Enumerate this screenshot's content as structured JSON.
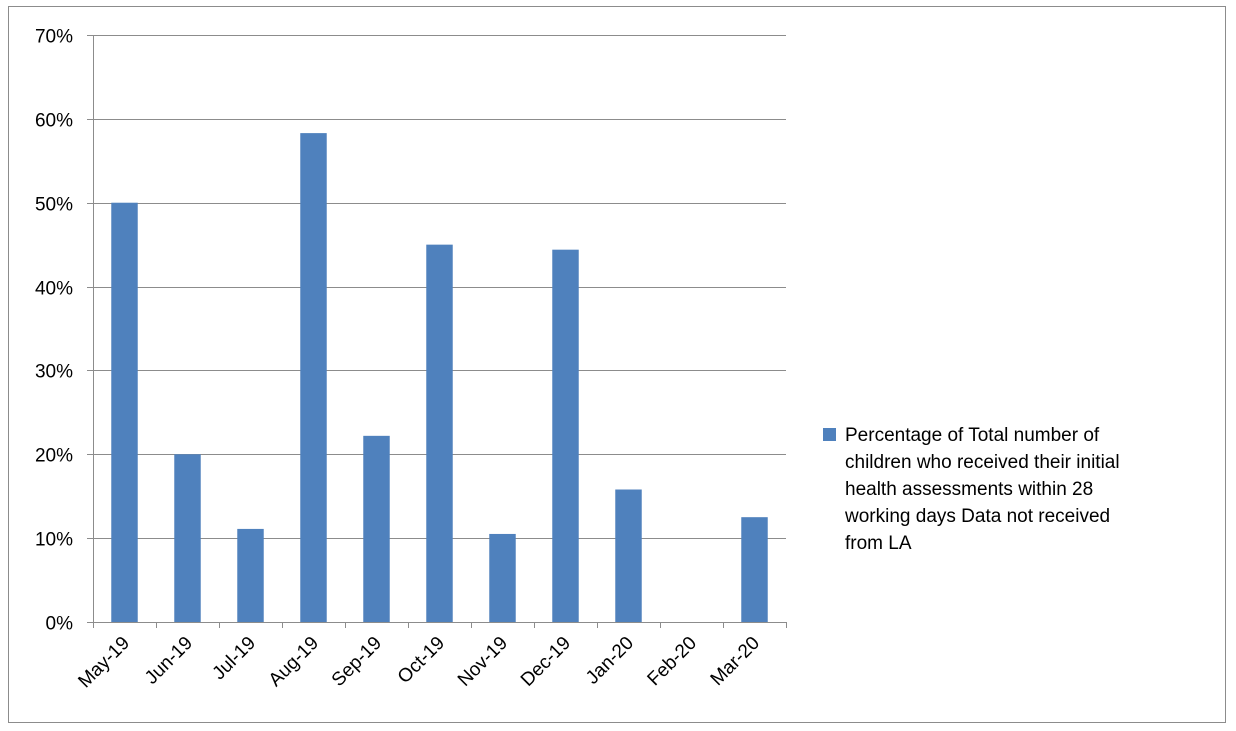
{
  "chart_data": {
    "type": "bar",
    "title": "",
    "xlabel": "",
    "ylabel": "",
    "categories": [
      "May-19",
      "Jun-19",
      "Jul-19",
      "Aug-19",
      "Sep-19",
      "Oct-19",
      "Nov-19",
      "Dec-19",
      "Jan-20",
      "Feb-20",
      "Mar-20"
    ],
    "series": [
      {
        "name": "Percentage of Total number of children who received their initial health assessments within 28 working days Data not received from LA",
        "values": [
          50,
          20,
          11.1,
          58.3,
          22.2,
          45,
          10.5,
          44.4,
          15.8,
          0,
          12.5
        ],
        "color": "#4f81bd"
      }
    ],
    "ylim": [
      0,
      70
    ],
    "yticks": [
      0,
      10,
      20,
      30,
      40,
      50,
      60,
      70
    ],
    "ytick_labels": [
      "0%",
      "10%",
      "20%",
      "30%",
      "40%",
      "50%",
      "60%",
      "70%"
    ],
    "grid": true,
    "legend_position": "right",
    "legend_lines": [
      "Percentage of Total number of",
      "children who received their initial",
      "health assessments within 28",
      "working days Data not received",
      "from LA"
    ]
  }
}
